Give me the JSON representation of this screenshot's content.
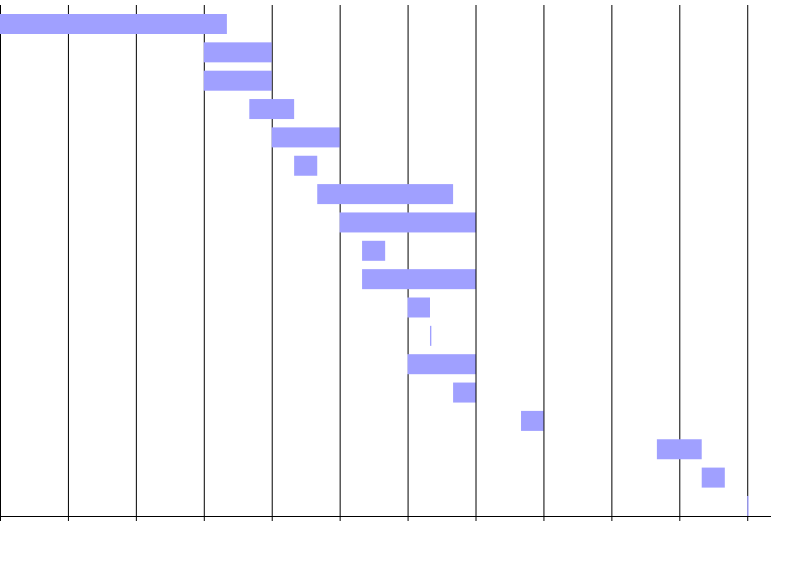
{
  "chart_data": {
    "type": "gantt",
    "start": [
      0,
      3,
      3,
      3.67,
      4,
      4.33,
      4.67,
      5,
      5.33,
      5.33,
      6,
      6.33,
      6,
      6.67,
      7.67,
      9.67,
      10.33,
      11
    ],
    "end": [
      3.34,
      4,
      4,
      4.33,
      5,
      4.67,
      6.67,
      7,
      5.67,
      7,
      6.33,
      6.35,
      7,
      7,
      8,
      10.33,
      10.67,
      11.02
    ],
    "color": "#a0a0ff",
    "xlim": [
      0,
      11.35
    ],
    "xticks": [
      0,
      1,
      2,
      3,
      4,
      5,
      6,
      7,
      8,
      9,
      10,
      11
    ],
    "grid": true
  }
}
